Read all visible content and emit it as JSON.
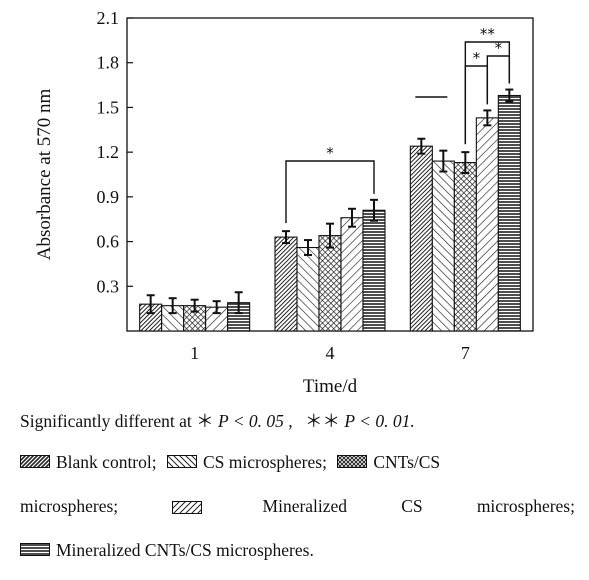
{
  "chart_data": {
    "type": "bar",
    "categories": [
      "1",
      "4",
      "7"
    ],
    "xlabel": "Time/d",
    "ylabel": "Absorbance at 570 nm",
    "ylim": [
      0,
      2.1
    ],
    "yticks": [
      "0.3",
      "0.6",
      "0.9",
      "1.2",
      "1.5",
      "1.8",
      "2.1"
    ],
    "series": [
      {
        "name": "Blank control",
        "values": [
          0.18,
          0.63,
          1.24
        ],
        "errors": [
          0.06,
          0.04,
          0.05
        ],
        "pattern": "dense-diag"
      },
      {
        "name": "CS microspheres",
        "values": [
          0.17,
          0.56,
          1.14
        ],
        "errors": [
          0.05,
          0.05,
          0.07
        ],
        "pattern": "back-diag"
      },
      {
        "name": "CNTs/CS microspheres",
        "values": [
          0.17,
          0.64,
          1.13
        ],
        "errors": [
          0.04,
          0.08,
          0.07
        ],
        "pattern": "crosshatch"
      },
      {
        "name": "Mineralized CS microspheres",
        "values": [
          0.16,
          0.76,
          1.43
        ],
        "errors": [
          0.04,
          0.06,
          0.05
        ],
        "pattern": "wide-diag"
      },
      {
        "name": "Mineralized CNTs/CS microspheres",
        "values": [
          0.19,
          0.81,
          1.58
        ],
        "errors": [
          0.07,
          0.07,
          0.04
        ],
        "pattern": "horizontal"
      }
    ],
    "annotations": [
      {
        "text": "*",
        "group": "4",
        "from_series": 0,
        "to_series": 4
      },
      {
        "text": "*",
        "group": "7",
        "from_series": 2,
        "to_series": 3
      },
      {
        "text": "*",
        "group": "7",
        "from_series": 3,
        "to_series": 4
      },
      {
        "text": "**",
        "group": "7",
        "from_series": 2,
        "to_series": 4
      }
    ]
  },
  "caption": {
    "line1_prefix": "Significantly different at",
    "sig1_stars": "＊",
    "sig1_expr": "P < 0. 05 ,",
    "sig2_stars": "＊＊",
    "sig2_expr": "P < 0. 01.",
    "legend_line1": [
      "Blank control;",
      "CS microspheres;",
      "CNTs/CS"
    ],
    "legend_line2": [
      "microspheres;",
      "Mineralized",
      "CS",
      "microspheres;"
    ],
    "legend_line3": "Mineralized CNTs/CS microspheres."
  }
}
